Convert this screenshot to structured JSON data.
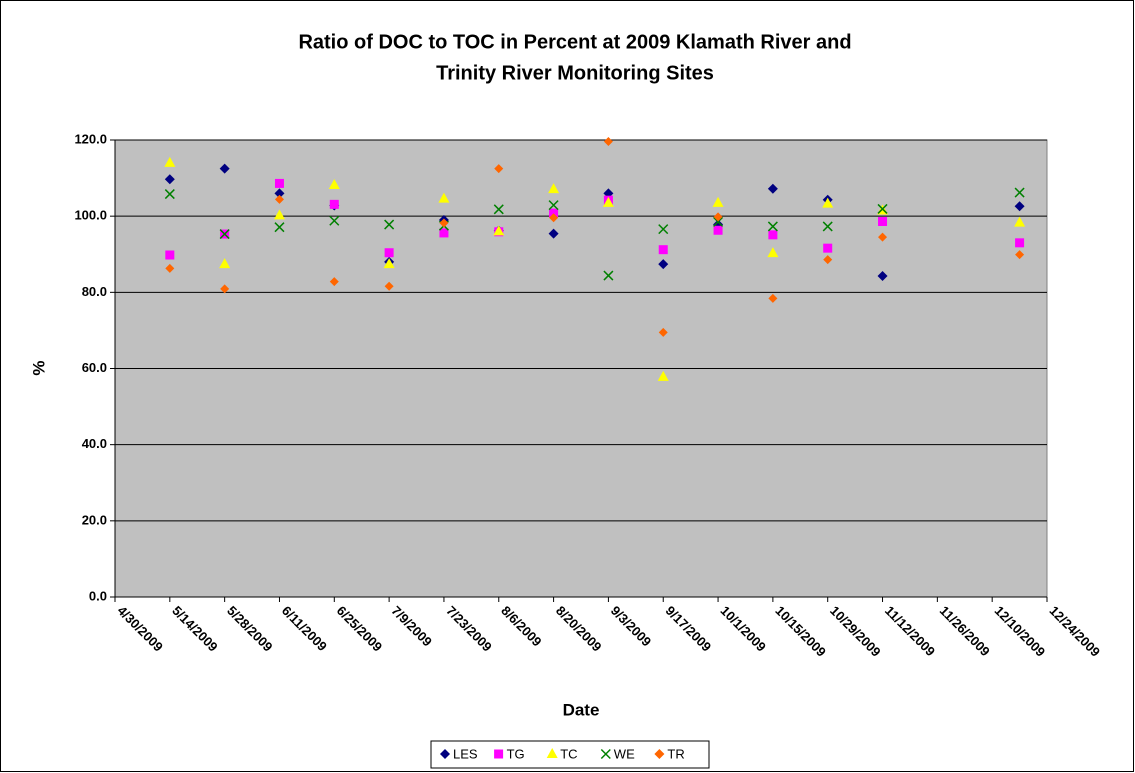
{
  "chart_data": {
    "type": "scatter",
    "title": [
      "Ratio of DOC to TOC in Percent at 2009 Klamath River and",
      "Trinity River Monitoring Sites"
    ],
    "x_label": "Date",
    "y_label": "%",
    "x": [
      "2009-05-14",
      "2009-05-28",
      "2009-06-11",
      "2009-06-25",
      "2009-07-09",
      "2009-07-23",
      "2009-08-06",
      "2009-08-20",
      "2009-09-03",
      "2009-09-17",
      "2009-10-01",
      "2009-10-15",
      "2009-10-29",
      "2009-11-12",
      "2009-12-17"
    ],
    "series": [
      {
        "name": "LES",
        "color": "#000080",
        "marker": "diamond",
        "values": [
          109.7,
          112.5,
          106.0,
          102.8,
          88.0,
          99.0,
          96.2,
          95.4,
          106.0,
          87.4,
          97.8,
          107.2,
          104.3,
          84.3,
          102.6
        ]
      },
      {
        "name": "TG",
        "color": "#ff00ff",
        "marker": "square",
        "values": [
          89.8,
          95.3,
          108.6,
          103.1,
          90.4,
          95.6,
          95.9,
          100.8,
          104.2,
          91.2,
          96.3,
          95.1,
          91.6,
          98.6,
          93.0
        ]
      },
      {
        "name": "TC",
        "color": "#ffff00",
        "marker": "triangle",
        "values": [
          114.0,
          87.4,
          100.2,
          108.2,
          87.4,
          104.6,
          96.0,
          107.1,
          103.5,
          57.8,
          103.5,
          90.3,
          103.3,
          101.5,
          98.3
        ]
      },
      {
        "name": "WE",
        "color": "#008000",
        "marker": "x",
        "values": [
          105.8,
          95.3,
          97.1,
          98.8,
          97.8,
          97.5,
          101.8,
          102.9,
          84.4,
          96.6,
          98.5,
          97.3,
          97.3,
          101.9,
          106.2
        ]
      },
      {
        "name": "TR",
        "color": "#ff6600",
        "marker": "diamond",
        "values": [
          86.3,
          80.9,
          104.4,
          82.8,
          81.6,
          98.2,
          112.5,
          99.6,
          119.6,
          69.5,
          99.8,
          78.4,
          88.6,
          94.5,
          89.9
        ]
      }
    ],
    "xlim": [
      "2009-04-30",
      "2009-12-24"
    ],
    "xticks": [
      {
        "value": "2009-04-30",
        "label": "4/30/2009"
      },
      {
        "value": "2009-05-14",
        "label": "5/14/2009"
      },
      {
        "value": "2009-05-28",
        "label": "5/28/2009"
      },
      {
        "value": "2009-06-11",
        "label": "6/11/2009"
      },
      {
        "value": "2009-06-25",
        "label": "6/25/2009"
      },
      {
        "value": "2009-07-09",
        "label": "7/9/2009"
      },
      {
        "value": "2009-07-23",
        "label": "7/23/2009"
      },
      {
        "value": "2009-08-06",
        "label": "8/6/2009"
      },
      {
        "value": "2009-08-20",
        "label": "8/20/2009"
      },
      {
        "value": "2009-09-03",
        "label": "9/3/2009"
      },
      {
        "value": "2009-09-17",
        "label": "9/17/2009"
      },
      {
        "value": "2009-10-01",
        "label": "10/1/2009"
      },
      {
        "value": "2009-10-15",
        "label": "10/15/2009"
      },
      {
        "value": "2009-10-29",
        "label": "10/29/2009"
      },
      {
        "value": "2009-11-12",
        "label": "11/12/2009"
      },
      {
        "value": "2009-11-26",
        "label": "11/26/2009"
      },
      {
        "value": "2009-12-10",
        "label": "12/10/2009"
      },
      {
        "value": "2009-12-24",
        "label": "12/24/2009"
      }
    ],
    "ylim": [
      0,
      120
    ],
    "yticks": [
      {
        "value": 0,
        "label": "0.0"
      },
      {
        "value": 20,
        "label": "20.0"
      },
      {
        "value": 40,
        "label": "40.0"
      },
      {
        "value": 60,
        "label": "60.0"
      },
      {
        "value": 80,
        "label": "80.0"
      },
      {
        "value": 100,
        "label": "100.0"
      },
      {
        "value": 120,
        "label": "120.0"
      }
    ],
    "grid": true,
    "legend": "bottom",
    "plot_background": "#c0c0c0"
  }
}
